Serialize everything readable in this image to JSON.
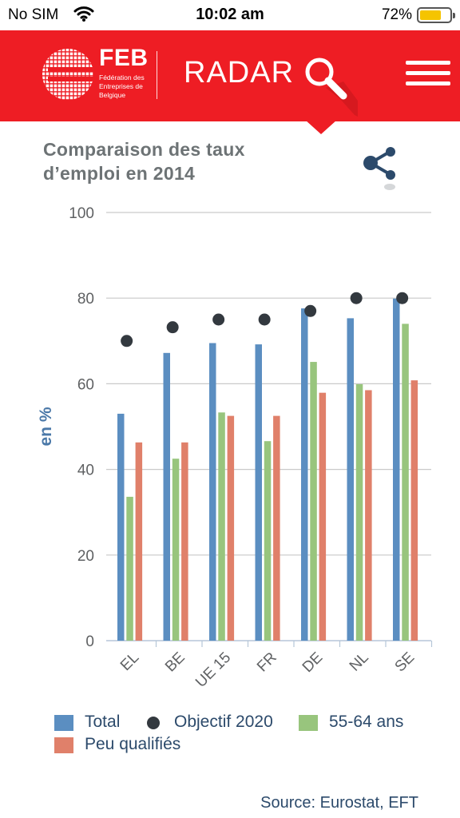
{
  "status_bar": {
    "carrier": "No SIM",
    "time": "10:02 am",
    "battery": "72%",
    "battery_level": 0.72
  },
  "header": {
    "logo_text": "FEB",
    "logo_subtitle_lines": [
      "Fédération des",
      "Entreprises de",
      "Belgique"
    ],
    "app_name": "RADAR",
    "colors": {
      "brand_red": "#ee1d24"
    }
  },
  "chart_header": {
    "title_lines": [
      "Comparaison des taux",
      "d’emploi en 2014"
    ]
  },
  "chart_data": {
    "type": "bar",
    "title": "Comparaison des taux d’emploi en 2014",
    "ylabel": "en %",
    "ylim": [
      0,
      100
    ],
    "yticks": [
      0,
      20,
      40,
      60,
      80,
      100
    ],
    "categories": [
      "EL",
      "BE",
      "UE 15",
      "FR",
      "DE",
      "NL",
      "SE"
    ],
    "series": [
      {
        "name": "Total",
        "kind": "bar",
        "color": "#5b8ec1",
        "values": [
          53,
          67.2,
          69.5,
          69.2,
          77.6,
          75.3,
          79.9
        ]
      },
      {
        "name": "55-64 ans",
        "kind": "bar",
        "color": "#98c57d",
        "values": [
          33.6,
          42.5,
          53.3,
          46.6,
          65.1,
          59.9,
          74
        ]
      },
      {
        "name": "Peu qualifiés",
        "kind": "bar",
        "color": "#e0806a",
        "values": [
          46.3,
          46.3,
          52.5,
          52.5,
          57.9,
          58.5,
          60.8
        ]
      },
      {
        "name": "Objectif 2020",
        "kind": "point",
        "color": "#33393f",
        "values": [
          70,
          73.2,
          75,
          75,
          77,
          80,
          80
        ]
      }
    ],
    "legend_position": "bottom",
    "grid": true,
    "source": "Source: Eurostat, EFT"
  }
}
